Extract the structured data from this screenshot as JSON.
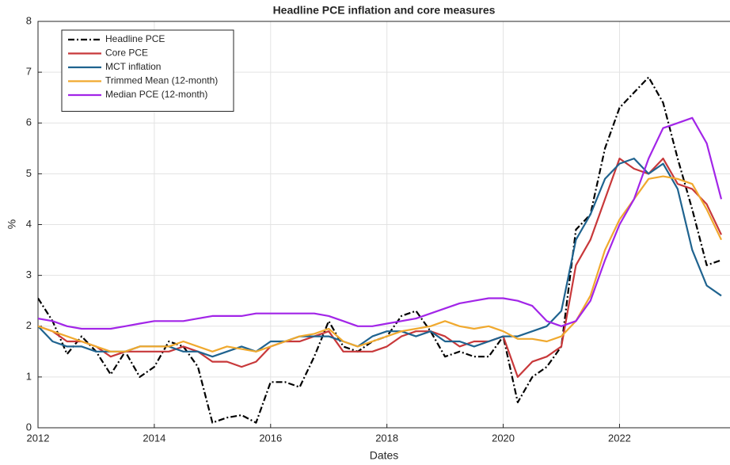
{
  "chart_data": {
    "type": "line",
    "title": "Headline PCE inflation and core measures",
    "x_label": "Dates",
    "y_label": "%",
    "x": [
      2012,
      2012.25,
      2012.5,
      2012.75,
      2013,
      2013.25,
      2013.5,
      2013.75,
      2014,
      2014.25,
      2014.5,
      2014.75,
      2015,
      2015.25,
      2015.5,
      2015.75,
      2016,
      2016.25,
      2016.5,
      2016.75,
      2017,
      2017.25,
      2017.5,
      2017.75,
      2018,
      2018.25,
      2018.5,
      2018.75,
      2019,
      2019.25,
      2019.5,
      2019.75,
      2020,
      2020.25,
      2020.5,
      2020.75,
      2021,
      2021.25,
      2021.5,
      2021.75,
      2022,
      2022.25,
      2022.5,
      2022.75,
      2023,
      2023.25,
      2023.5,
      2023.75
    ],
    "series": [
      {
        "name": "Headline PCE",
        "color": "#000000",
        "dash": true,
        "values": [
          2.55,
          2.1,
          1.45,
          1.8,
          1.5,
          1.05,
          1.5,
          1.0,
          1.2,
          1.7,
          1.6,
          1.2,
          0.1,
          0.2,
          0.25,
          0.1,
          0.9,
          0.9,
          0.8,
          1.4,
          2.1,
          1.6,
          1.5,
          1.7,
          1.8,
          2.2,
          2.3,
          1.9,
          1.4,
          1.5,
          1.4,
          1.4,
          1.8,
          0.5,
          1.0,
          1.2,
          1.6,
          3.9,
          4.2,
          5.5,
          6.3,
          6.6,
          6.9,
          6.4,
          5.3,
          4.3,
          3.2,
          3.3
        ]
      },
      {
        "name": "Core PCE",
        "color": "#c8383a",
        "dash": false,
        "values": [
          2.0,
          1.9,
          1.7,
          1.7,
          1.6,
          1.4,
          1.5,
          1.5,
          1.5,
          1.5,
          1.6,
          1.5,
          1.3,
          1.3,
          1.2,
          1.3,
          1.6,
          1.7,
          1.7,
          1.8,
          1.9,
          1.5,
          1.5,
          1.5,
          1.6,
          1.8,
          1.9,
          1.9,
          1.8,
          1.6,
          1.7,
          1.7,
          1.8,
          1.0,
          1.3,
          1.4,
          1.6,
          3.2,
          3.7,
          4.5,
          5.3,
          5.1,
          5.0,
          5.3,
          4.8,
          4.7,
          4.4,
          3.8
        ]
      },
      {
        "name": "MCT inflation",
        "color": "#1f638f",
        "dash": false,
        "values": [
          2.0,
          1.7,
          1.6,
          1.6,
          1.5,
          1.5,
          1.5,
          1.6,
          1.6,
          1.6,
          1.5,
          1.5,
          1.4,
          1.5,
          1.6,
          1.5,
          1.7,
          1.7,
          1.8,
          1.8,
          1.8,
          1.7,
          1.6,
          1.8,
          1.9,
          1.9,
          1.8,
          1.9,
          1.7,
          1.7,
          1.6,
          1.7,
          1.8,
          1.8,
          1.9,
          2.0,
          2.3,
          3.7,
          4.2,
          4.9,
          5.2,
          5.3,
          5.0,
          5.2,
          4.7,
          3.5,
          2.8,
          2.6
        ]
      },
      {
        "name": "Trimmed Mean (12-month)",
        "color": "#f0a92e",
        "dash": false,
        "values": [
          2.0,
          1.9,
          1.8,
          1.7,
          1.6,
          1.5,
          1.5,
          1.6,
          1.6,
          1.6,
          1.7,
          1.6,
          1.5,
          1.6,
          1.55,
          1.5,
          1.6,
          1.7,
          1.8,
          1.85,
          1.95,
          1.7,
          1.6,
          1.7,
          1.8,
          1.9,
          1.95,
          2.0,
          2.1,
          2.0,
          1.95,
          2.0,
          1.9,
          1.75,
          1.75,
          1.7,
          1.8,
          2.1,
          2.6,
          3.5,
          4.1,
          4.5,
          4.9,
          4.95,
          4.9,
          4.8,
          4.3,
          3.7
        ]
      },
      {
        "name": "Median PCE (12-month)",
        "color": "#a225e8",
        "dash": false,
        "values": [
          2.15,
          2.1,
          2.0,
          1.95,
          1.95,
          1.95,
          2.0,
          2.05,
          2.1,
          2.1,
          2.1,
          2.15,
          2.2,
          2.2,
          2.2,
          2.25,
          2.25,
          2.25,
          2.25,
          2.25,
          2.2,
          2.1,
          2.0,
          2.0,
          2.05,
          2.1,
          2.15,
          2.25,
          2.35,
          2.45,
          2.5,
          2.55,
          2.55,
          2.5,
          2.4,
          2.1,
          2.0,
          2.1,
          2.5,
          3.3,
          4.0,
          4.5,
          5.3,
          5.9,
          6.0,
          6.1,
          5.6,
          4.5
        ]
      }
    ],
    "xlim": [
      2012,
      2023.9
    ],
    "xticks": [
      2012,
      2014,
      2016,
      2018,
      2020,
      2022
    ],
    "ylim": [
      0,
      8
    ],
    "yticks": [
      0,
      1,
      2,
      3,
      4,
      5,
      6,
      7,
      8
    ],
    "grid": true,
    "legend": "upper left"
  }
}
